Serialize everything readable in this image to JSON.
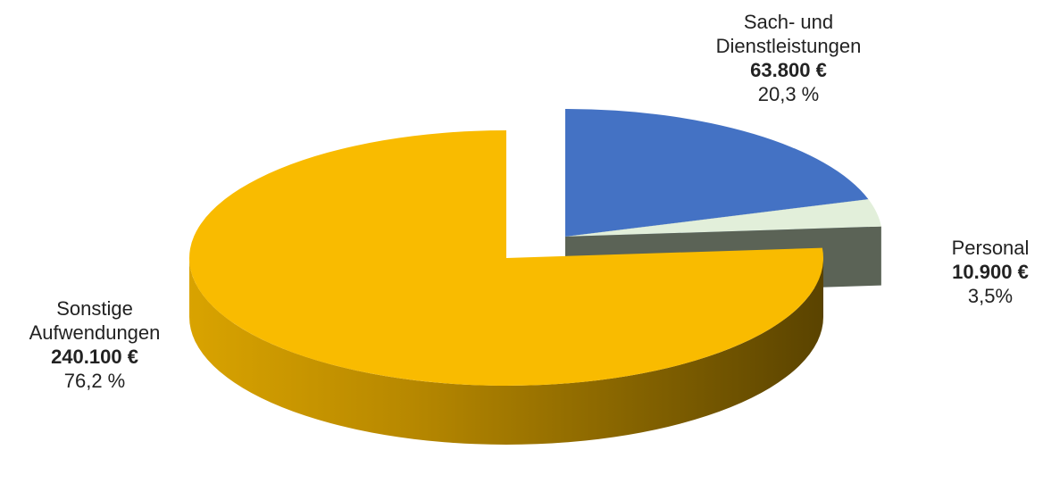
{
  "chart_data": {
    "type": "pie",
    "style": "3d-exploded",
    "slices": [
      {
        "name": "Sonstige Aufwendungen",
        "name_lines": [
          "Sonstige",
          "Aufwendungen"
        ],
        "value": 240100,
        "amount_label": "240.100 €",
        "percent": 76.2,
        "percent_label": "76,2 %",
        "color": "#F9BB00",
        "side_color": "#C89200",
        "side_dark": "#5E4700"
      },
      {
        "name": "Sach- und Dienstleistungen",
        "name_lines": [
          "Sach- und",
          "Dienstleistungen"
        ],
        "value": 63800,
        "amount_label": "63.800 €",
        "percent": 20.3,
        "percent_label": "20,3 %",
        "color": "#4472C4",
        "side_color": "#2F528F",
        "side_dark": "#1F3864"
      },
      {
        "name": "Personal",
        "name_lines": [
          "Personal"
        ],
        "value": 10900,
        "amount_label": "10.900 €",
        "percent": 3.5,
        "percent_label": "3,5%",
        "color": "#E2EFDA",
        "side_color": "#5B6356",
        "side_dark": "#4A5146"
      }
    ]
  }
}
